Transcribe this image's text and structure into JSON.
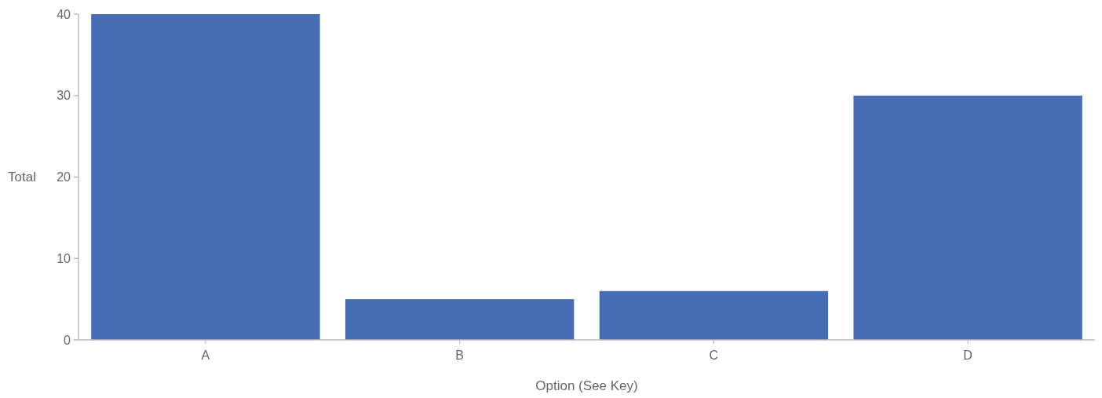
{
  "chart_data": {
    "type": "bar",
    "xlabel": "Option (See Key)",
    "ylabel": "Total",
    "categories": [
      "A",
      "B",
      "C",
      "D"
    ],
    "values": [
      40,
      5,
      6,
      30
    ],
    "color": "#476db4",
    "ylim": [
      0,
      40
    ],
    "yticks": [
      0,
      10,
      20,
      30,
      40
    ]
  }
}
